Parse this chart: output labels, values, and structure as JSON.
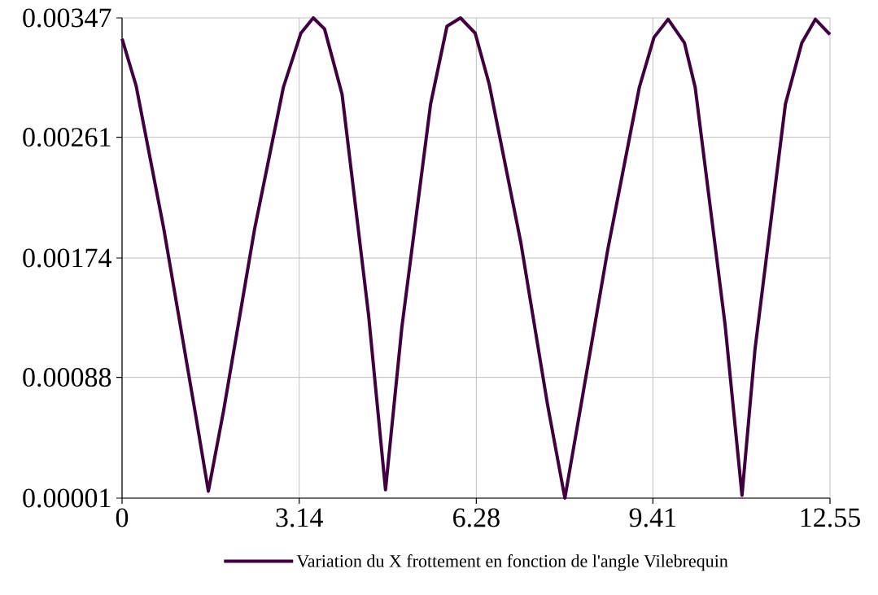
{
  "chart_data": {
    "type": "line",
    "x": [
      0,
      0.25,
      0.74,
      1.3,
      1.53,
      1.8,
      2.35,
      2.86,
      3.17,
      3.39,
      3.59,
      3.9,
      4.37,
      4.67,
      4.96,
      5.47,
      5.76,
      6.0,
      6.26,
      6.51,
      7.07,
      7.54,
      7.85,
      8.14,
      8.61,
      9.17,
      9.43,
      9.68,
      9.97,
      10.16,
      10.69,
      10.99,
      11.22,
      11.76,
      12.05,
      12.29,
      12.55
    ],
    "series": [
      {
        "name": "Variation du X frottement en fonction de l'angle Vilebrequin",
        "color": "#400040",
        "values": [
          0.00332,
          0.00298,
          0.00195,
          0.00062,
          6e-05,
          0.00064,
          0.00195,
          0.00297,
          0.00336,
          0.00347,
          0.00339,
          0.00292,
          0.00133,
          7e-05,
          0.00124,
          0.00285,
          0.00341,
          0.00347,
          0.00336,
          0.00299,
          0.00185,
          0.00069,
          1e-05,
          0.00069,
          0.0018,
          0.00297,
          0.00333,
          0.00346,
          0.00329,
          0.00297,
          0.00126,
          3e-05,
          0.00108,
          0.00285,
          0.00329,
          0.00346,
          0.00335
        ]
      }
    ],
    "xlim": [
      0,
      12.55
    ],
    "ylim": [
      1e-05,
      0.00347
    ],
    "xticks": [
      0,
      3.14,
      6.28,
      9.41,
      12.55
    ],
    "yticks": [
      {
        "value": 1e-05,
        "label": "0.00001"
      },
      0.00088,
      0.00174,
      0.00261,
      0.00347
    ],
    "grid": true,
    "legend": "bottom",
    "marker": "none",
    "line_style": "solid"
  }
}
